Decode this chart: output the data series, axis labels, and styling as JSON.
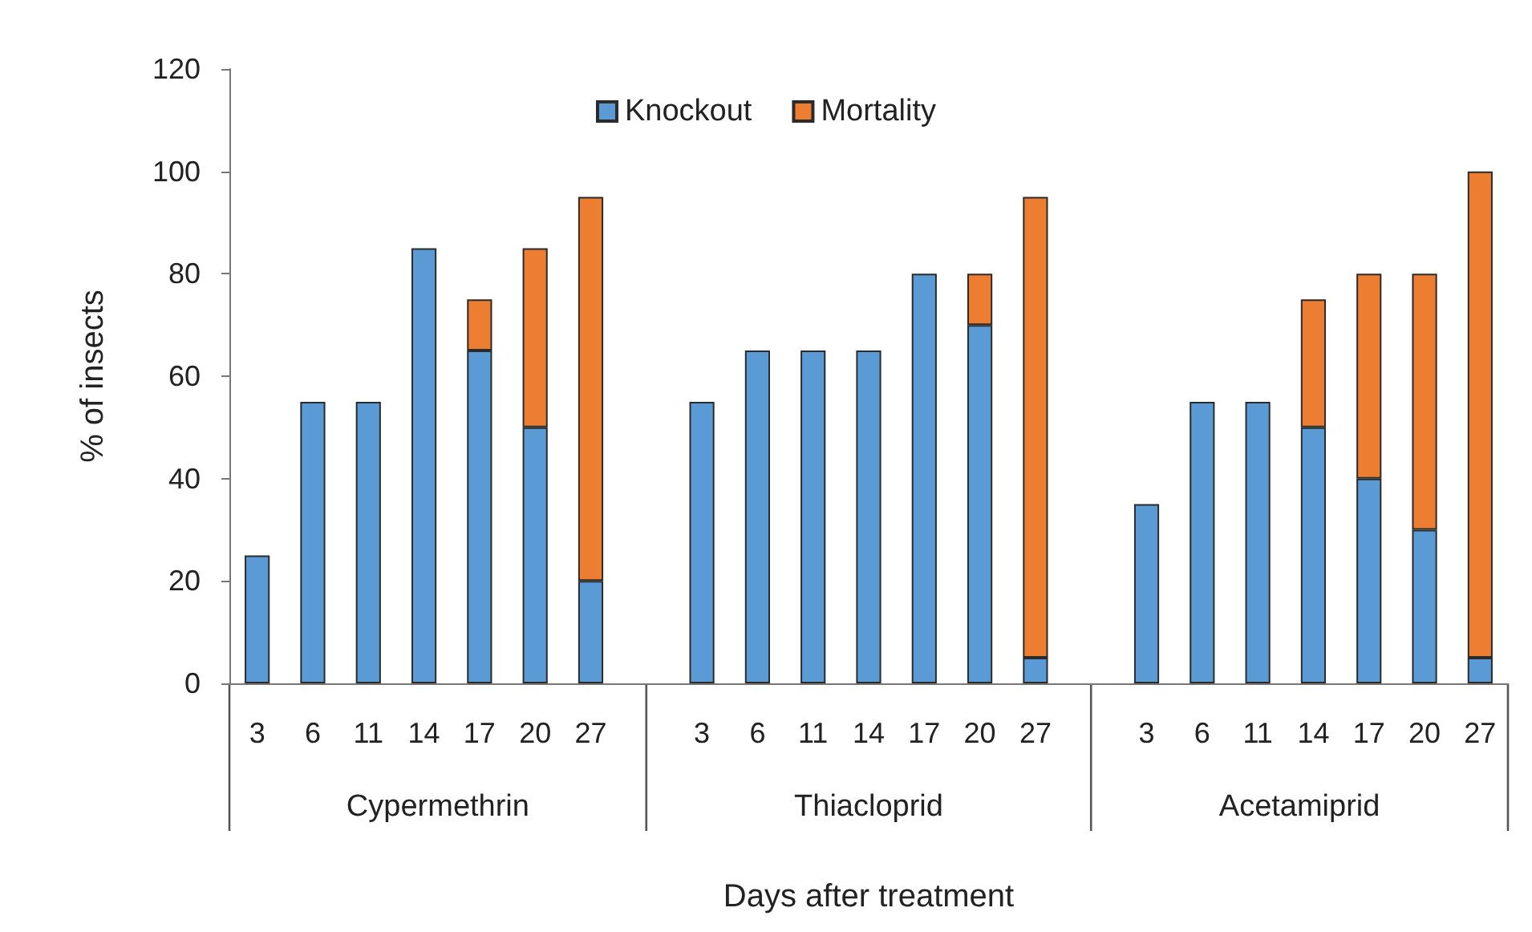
{
  "chart_data": {
    "type": "bar",
    "stacked": true,
    "xlabel": "Days after treatment",
    "ylabel": "% of insects",
    "categories": [
      "3",
      "6",
      "11",
      "14",
      "17",
      "20",
      "27",
      null,
      "3",
      "6",
      "11",
      "14",
      "17",
      "20",
      "27",
      null,
      "3",
      "6",
      "11",
      "14",
      "17",
      "20",
      "27"
    ],
    "annotations": [
      "Cypermethrin",
      "Thiacloprid",
      "Acetamiprid"
    ],
    "series": [
      {
        "name": "Knockout",
        "color": "#5b9bd5",
        "values": [
          25,
          55,
          55,
          85,
          65,
          50,
          20,
          null,
          55,
          65,
          65,
          65,
          80,
          70,
          5,
          null,
          35,
          55,
          55,
          50,
          40,
          30,
          5
        ]
      },
      {
        "name": "Mortality",
        "color": "#ed7d31",
        "values": [
          0,
          0,
          0,
          0,
          10,
          35,
          75,
          null,
          0,
          0,
          0,
          0,
          0,
          10,
          90,
          null,
          0,
          0,
          0,
          25,
          40,
          50,
          95
        ]
      }
    ],
    "ylim": [
      0,
      120
    ],
    "yticks": [
      0,
      20,
      40,
      60,
      80,
      100,
      120
    ],
    "grid": false,
    "legend": "top"
  }
}
